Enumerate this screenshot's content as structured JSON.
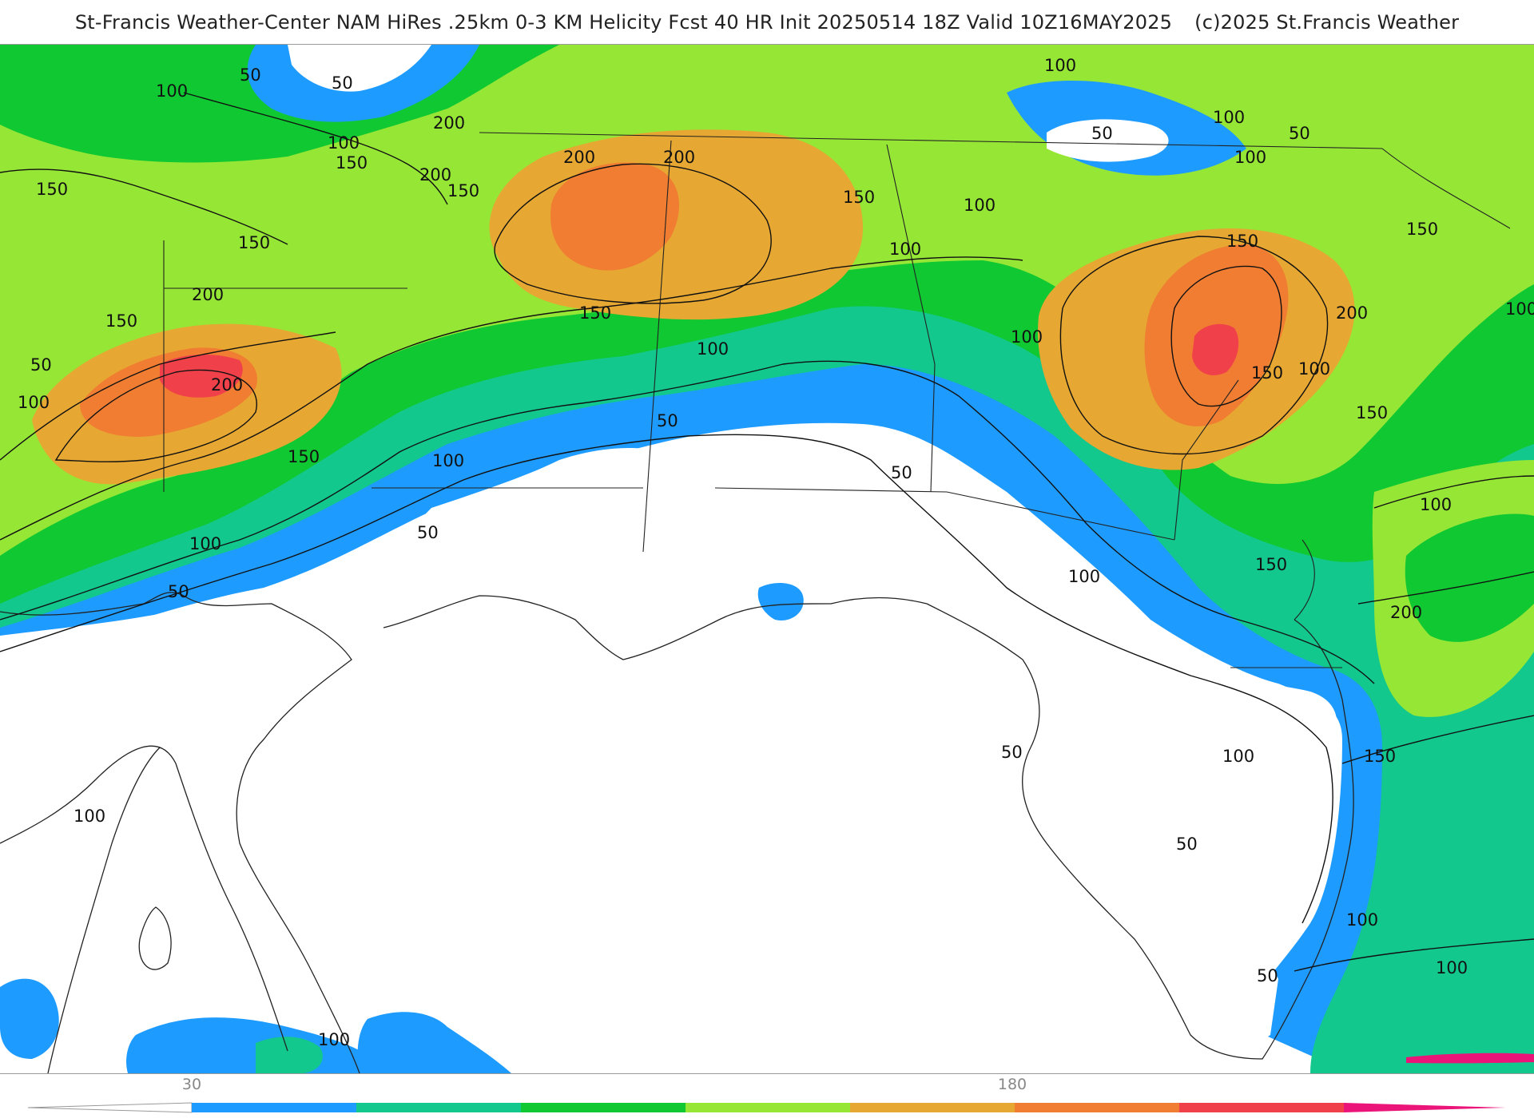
{
  "header": {
    "title": "St-Francis Weather-Center NAM HiRes .25km 0-3 KM Helicity Fcst 40 HR Init 20250514 18Z  Valid 10Z16MAY2025",
    "copyright": "(c)2025 St.Francis Weather"
  },
  "map": {
    "field": "0-3 KM Helicity",
    "contour_labels": [
      "50",
      "100",
      "150",
      "200",
      "50",
      "100",
      "150",
      "200",
      "100",
      "150",
      "50",
      "100",
      "200",
      "150",
      "200",
      "150",
      "100",
      "50",
      "100",
      "150",
      "200",
      "100",
      "150",
      "100",
      "50",
      "100",
      "150",
      "100",
      "50",
      "100",
      "150",
      "200",
      "150",
      "100",
      "50",
      "100",
      "50",
      "100",
      "100",
      "50",
      "100",
      "50",
      "100",
      "150",
      "100",
      "50",
      "200",
      "150",
      "100",
      "100",
      "150",
      "100"
    ]
  },
  "colorbar": {
    "tick_labels": [
      "30",
      "180"
    ],
    "colors": [
      "#1e9bff",
      "#12c88c",
      "#10c832",
      "#96e636",
      "#e6a832",
      "#f07d32",
      "#f0414b",
      "#eb1478"
    ]
  }
}
